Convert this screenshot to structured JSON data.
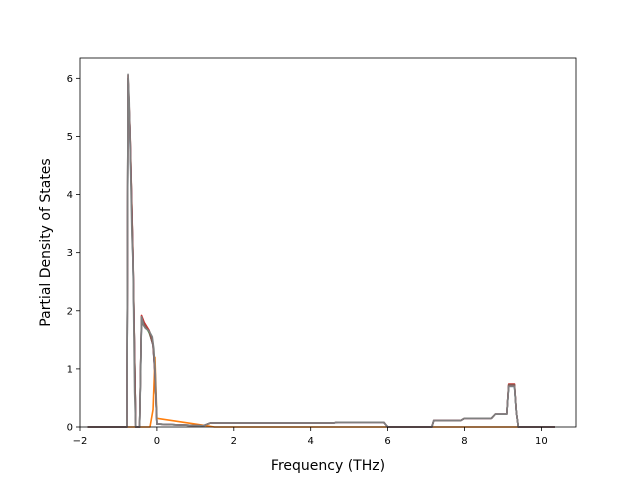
{
  "chart_data": {
    "type": "line",
    "title": "",
    "xlabel": "Frequency (THz)",
    "ylabel": "Partial Density of States",
    "xlim": [
      -2.0,
      10.9
    ],
    "ylim": [
      0,
      6.35
    ],
    "xticks": [
      -2,
      0,
      2,
      4,
      6,
      8,
      10
    ],
    "yticks": [
      0,
      1,
      2,
      3,
      4,
      5,
      6
    ],
    "grid": false,
    "legend": "none",
    "series": [
      {
        "color": "#1f77b4",
        "points": [
          [
            -1.8,
            0
          ],
          [
            -0.78,
            0
          ],
          [
            -0.75,
            5.9
          ],
          [
            -0.7,
            5.0
          ],
          [
            -0.62,
            2.8
          ],
          [
            -0.55,
            0
          ],
          [
            -0.45,
            0
          ],
          [
            -0.4,
            1.85
          ],
          [
            -0.33,
            1.75
          ],
          [
            -0.2,
            1.65
          ],
          [
            -0.1,
            1.4
          ],
          [
            -0.05,
            0.9
          ],
          [
            0.0,
            0.05
          ],
          [
            0.4,
            0.04
          ],
          [
            1.2,
            0.02
          ],
          [
            1.4,
            0.07
          ],
          [
            4.6,
            0.07
          ],
          [
            4.7,
            0.08
          ],
          [
            5.9,
            0.08
          ],
          [
            6.0,
            0
          ],
          [
            7.15,
            0
          ],
          [
            7.2,
            0.11
          ],
          [
            7.9,
            0.11
          ],
          [
            8.0,
            0.15
          ],
          [
            8.7,
            0.15
          ],
          [
            8.8,
            0.22
          ],
          [
            9.1,
            0.22
          ],
          [
            9.15,
            0.7
          ],
          [
            9.3,
            0.7
          ],
          [
            9.35,
            0.25
          ],
          [
            9.4,
            0
          ],
          [
            10.35,
            0
          ]
        ]
      },
      {
        "color": "#ff7f0e",
        "points": [
          [
            -1.8,
            0
          ],
          [
            -0.18,
            0
          ],
          [
            -0.1,
            0.3
          ],
          [
            -0.05,
            1.2
          ],
          [
            0.0,
            0.15
          ],
          [
            0.5,
            0.1
          ],
          [
            1.0,
            0.05
          ],
          [
            1.3,
            0.02
          ],
          [
            1.5,
            0
          ],
          [
            10.35,
            0
          ]
        ]
      },
      {
        "color": "#2ca02c",
        "points": [
          [
            -1.8,
            0
          ],
          [
            -0.78,
            0
          ],
          [
            -0.75,
            6.0
          ],
          [
            -0.7,
            5.1
          ],
          [
            -0.62,
            2.85
          ],
          [
            -0.55,
            0
          ],
          [
            -0.45,
            0
          ],
          [
            -0.4,
            1.9
          ],
          [
            -0.33,
            1.78
          ],
          [
            -0.2,
            1.62
          ],
          [
            -0.1,
            1.42
          ],
          [
            -0.05,
            0.95
          ],
          [
            0.0,
            0.05
          ],
          [
            0.4,
            0.04
          ],
          [
            1.2,
            0.02
          ],
          [
            1.4,
            0.07
          ],
          [
            4.6,
            0.07
          ],
          [
            4.7,
            0.08
          ],
          [
            5.9,
            0.08
          ],
          [
            6.0,
            0
          ],
          [
            7.15,
            0
          ],
          [
            7.2,
            0.11
          ],
          [
            7.9,
            0.11
          ],
          [
            8.0,
            0.15
          ],
          [
            8.7,
            0.15
          ],
          [
            8.8,
            0.22
          ],
          [
            9.1,
            0.22
          ],
          [
            9.15,
            0.72
          ],
          [
            9.3,
            0.72
          ],
          [
            9.35,
            0.25
          ],
          [
            9.4,
            0
          ],
          [
            10.35,
            0
          ]
        ]
      },
      {
        "color": "#d62728",
        "points": [
          [
            -1.8,
            0
          ],
          [
            -0.78,
            0
          ],
          [
            -0.75,
            6.05
          ],
          [
            -0.7,
            5.15
          ],
          [
            -0.62,
            2.9
          ],
          [
            -0.55,
            0
          ],
          [
            -0.45,
            0
          ],
          [
            -0.4,
            1.92
          ],
          [
            -0.33,
            1.8
          ],
          [
            -0.2,
            1.66
          ],
          [
            -0.1,
            1.43
          ],
          [
            -0.05,
            0.95
          ],
          [
            0.0,
            0.05
          ],
          [
            0.4,
            0.04
          ],
          [
            1.2,
            0.02
          ],
          [
            1.4,
            0.07
          ],
          [
            4.6,
            0.07
          ],
          [
            4.7,
            0.08
          ],
          [
            5.9,
            0.08
          ],
          [
            6.0,
            0
          ],
          [
            7.15,
            0
          ],
          [
            7.2,
            0.11
          ],
          [
            7.9,
            0.11
          ],
          [
            8.0,
            0.15
          ],
          [
            8.7,
            0.15
          ],
          [
            8.8,
            0.22
          ],
          [
            9.1,
            0.22
          ],
          [
            9.15,
            0.74
          ],
          [
            9.3,
            0.74
          ],
          [
            9.35,
            0.25
          ],
          [
            9.4,
            0
          ],
          [
            10.35,
            0
          ]
        ]
      },
      {
        "color": "#9467bd",
        "points": [
          [
            -1.8,
            0
          ],
          [
            -0.78,
            0
          ],
          [
            -0.75,
            6.0
          ],
          [
            -0.7,
            5.1
          ],
          [
            -0.62,
            2.85
          ],
          [
            -0.55,
            0
          ],
          [
            -0.45,
            0
          ],
          [
            -0.4,
            1.88
          ],
          [
            -0.33,
            1.76
          ],
          [
            -0.2,
            1.64
          ],
          [
            -0.1,
            1.41
          ],
          [
            -0.05,
            0.93
          ],
          [
            0.0,
            0.05
          ],
          [
            0.4,
            0.04
          ],
          [
            1.2,
            0.02
          ],
          [
            1.4,
            0.07
          ],
          [
            4.6,
            0.07
          ],
          [
            4.7,
            0.08
          ],
          [
            5.9,
            0.08
          ],
          [
            6.0,
            0
          ],
          [
            7.15,
            0
          ],
          [
            7.2,
            0.11
          ],
          [
            7.9,
            0.11
          ],
          [
            8.0,
            0.15
          ],
          [
            8.7,
            0.15
          ],
          [
            8.8,
            0.22
          ],
          [
            9.1,
            0.22
          ],
          [
            9.15,
            0.72
          ],
          [
            9.3,
            0.72
          ],
          [
            9.35,
            0.25
          ],
          [
            9.4,
            0
          ],
          [
            10.35,
            0
          ]
        ]
      },
      {
        "color": "#8c564b",
        "points": [
          [
            -1.8,
            0
          ],
          [
            -0.78,
            0
          ],
          [
            -0.75,
            6.0
          ],
          [
            -0.7,
            5.1
          ],
          [
            -0.62,
            2.85
          ],
          [
            -0.55,
            0
          ],
          [
            -0.45,
            0
          ],
          [
            -0.4,
            1.88
          ],
          [
            -0.33,
            1.77
          ],
          [
            -0.2,
            1.64
          ],
          [
            -0.1,
            1.41
          ],
          [
            -0.05,
            0.93
          ],
          [
            0.0,
            0.05
          ],
          [
            0.4,
            0.04
          ],
          [
            1.2,
            0.02
          ],
          [
            1.4,
            0.07
          ],
          [
            4.6,
            0.07
          ],
          [
            4.7,
            0.08
          ],
          [
            5.9,
            0.08
          ],
          [
            6.0,
            0
          ],
          [
            7.15,
            0
          ],
          [
            7.2,
            0.11
          ],
          [
            7.9,
            0.11
          ],
          [
            8.0,
            0.15
          ],
          [
            8.7,
            0.15
          ],
          [
            8.8,
            0.22
          ],
          [
            9.1,
            0.22
          ],
          [
            9.15,
            0.73
          ],
          [
            9.3,
            0.73
          ],
          [
            9.35,
            0.25
          ],
          [
            9.4,
            0
          ],
          [
            10.35,
            0
          ]
        ]
      },
      {
        "color": "#7f7f7f",
        "points": [
          [
            -1.8,
            0
          ],
          [
            -0.78,
            0
          ],
          [
            -0.75,
            6.07
          ],
          [
            -0.72,
            5.6
          ],
          [
            -0.7,
            5.0
          ],
          [
            -0.65,
            3.3
          ],
          [
            -0.62,
            2.8
          ],
          [
            -0.58,
            0.6
          ],
          [
            -0.55,
            0
          ],
          [
            -0.45,
            0
          ],
          [
            -0.42,
            1.0
          ],
          [
            -0.4,
            1.9
          ],
          [
            -0.35,
            1.75
          ],
          [
            -0.3,
            1.7
          ],
          [
            -0.2,
            1.65
          ],
          [
            -0.12,
            1.55
          ],
          [
            -0.08,
            1.35
          ],
          [
            -0.04,
            0.9
          ],
          [
            0.0,
            0.05
          ],
          [
            0.4,
            0.04
          ],
          [
            1.2,
            0.02
          ],
          [
            1.4,
            0.07
          ],
          [
            4.6,
            0.07
          ],
          [
            4.7,
            0.08
          ],
          [
            5.9,
            0.08
          ],
          [
            6.0,
            0
          ],
          [
            7.15,
            0
          ],
          [
            7.2,
            0.11
          ],
          [
            7.9,
            0.11
          ],
          [
            8.0,
            0.15
          ],
          [
            8.7,
            0.15
          ],
          [
            8.8,
            0.22
          ],
          [
            9.1,
            0.22
          ],
          [
            9.15,
            0.7
          ],
          [
            9.3,
            0.7
          ],
          [
            9.35,
            0.25
          ],
          [
            9.4,
            0
          ],
          [
            10.35,
            0
          ]
        ]
      }
    ]
  }
}
